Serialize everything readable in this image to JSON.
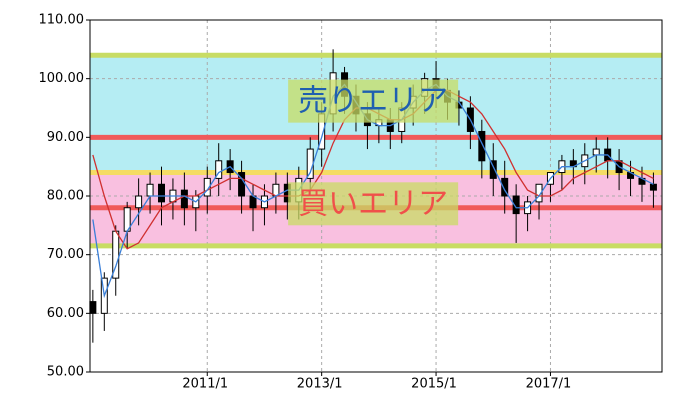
{
  "chart_data": {
    "type": "candlestick",
    "xlim": [
      2008.95,
      2018.95
    ],
    "xticks": [
      {
        "value": 2011,
        "label": "2011/1"
      },
      {
        "value": 2013,
        "label": "2013/1"
      },
      {
        "value": 2015,
        "label": "2015/1"
      },
      {
        "value": 2017,
        "label": "2017/1"
      }
    ],
    "ylim": [
      50,
      110
    ],
    "yticks": [
      {
        "value": 50,
        "label": "50.00"
      },
      {
        "value": 60,
        "label": "60.00"
      },
      {
        "value": 70,
        "label": "70.00"
      },
      {
        "value": 80,
        "label": "80.00"
      },
      {
        "value": 90,
        "label": "90.00"
      },
      {
        "value": 100,
        "label": "100.00"
      },
      {
        "value": 110,
        "label": "110.00"
      }
    ],
    "grid": true,
    "bands": [
      {
        "from": 84,
        "to": 104,
        "color": "#b5edf3"
      },
      {
        "from": 71.5,
        "to": 84,
        "color": "#f9c0e0"
      }
    ],
    "hlines": [
      {
        "value": 104,
        "color": "#c8dc64"
      },
      {
        "value": 90,
        "color": "#f05a5a"
      },
      {
        "value": 84,
        "color": "#f5dc64"
      },
      {
        "value": 78,
        "color": "#f05a5a"
      },
      {
        "value": 71.5,
        "color": "#c8dc64"
      }
    ],
    "annotations": [
      {
        "text": "売りエリア",
        "x": 2013.9,
        "y": 96,
        "color": "#1f5fb0"
      },
      {
        "text": "買いエリア",
        "x": 2013.9,
        "y": 78.5,
        "color": "#f0504a"
      }
    ],
    "x": [
      2009.0,
      2009.2,
      2009.4,
      2009.6,
      2009.8,
      2010.0,
      2010.2,
      2010.4,
      2010.6,
      2010.8,
      2011.0,
      2011.2,
      2011.4,
      2011.6,
      2011.8,
      2012.0,
      2012.2,
      2012.4,
      2012.6,
      2012.8,
      2013.0,
      2013.2,
      2013.4,
      2013.6,
      2013.8,
      2014.0,
      2014.2,
      2014.4,
      2014.6,
      2014.8,
      2015.0,
      2015.2,
      2015.4,
      2015.6,
      2015.8,
      2016.0,
      2016.2,
      2016.4,
      2016.6,
      2016.8,
      2017.0,
      2017.2,
      2017.4,
      2017.6,
      2017.8,
      2018.0,
      2018.2,
      2018.4,
      2018.6,
      2018.8
    ],
    "open": [
      62,
      60,
      66,
      74,
      78,
      80,
      82,
      79,
      81,
      78,
      80,
      83,
      86,
      84,
      80,
      78,
      80,
      82,
      79,
      83,
      88,
      94,
      101,
      97,
      94,
      92,
      93,
      91,
      95,
      97,
      100,
      98,
      96,
      95,
      91,
      86,
      83,
      80,
      77,
      79,
      82,
      84,
      86,
      85,
      87,
      88,
      86,
      84,
      83,
      82
    ],
    "high": [
      64,
      67,
      75,
      79,
      83,
      84,
      85,
      83,
      84,
      81,
      85,
      89,
      88,
      86,
      82,
      82,
      84,
      84,
      85,
      90,
      96,
      105,
      102,
      99,
      96,
      95,
      95,
      96,
      99,
      101,
      103,
      100,
      98,
      97,
      93,
      89,
      86,
      82,
      80,
      82,
      84,
      87,
      88,
      89,
      90,
      90,
      88,
      86,
      85,
      84
    ],
    "low": [
      55,
      57,
      63,
      71,
      75,
      77,
      75,
      76,
      75,
      74,
      77,
      80,
      81,
      77,
      74,
      75,
      77,
      76,
      76,
      80,
      85,
      91,
      94,
      91,
      88,
      89,
      88,
      89,
      92,
      94,
      95,
      93,
      92,
      88,
      83,
      80,
      77,
      72,
      74,
      76,
      79,
      81,
      82,
      82,
      84,
      83,
      81,
      80,
      79,
      78
    ],
    "close": [
      60,
      66,
      74,
      78,
      80,
      82,
      79,
      81,
      78,
      80,
      83,
      86,
      84,
      80,
      78,
      80,
      82,
      79,
      83,
      88,
      94,
      101,
      97,
      94,
      92,
      93,
      91,
      95,
      97,
      100,
      98,
      96,
      95,
      91,
      86,
      83,
      80,
      77,
      79,
      82,
      84,
      86,
      85,
      87,
      88,
      86,
      84,
      83,
      82,
      81
    ],
    "lines": [
      {
        "color": "#d03030",
        "values": [
          87,
          80,
          74,
          71,
          72,
          75,
          78,
          79,
          80,
          80,
          81,
          82,
          83,
          83,
          82,
          81,
          80,
          80,
          80,
          81,
          84,
          89,
          93,
          95,
          95,
          94,
          93,
          93,
          94,
          96,
          98,
          98,
          97,
          96,
          94,
          91,
          88,
          84,
          81,
          80,
          80,
          81,
          83,
          84,
          85,
          86,
          86,
          85,
          84,
          83
        ]
      },
      {
        "color": "#3a7fd8",
        "values": [
          76,
          63,
          68,
          74,
          77,
          80,
          80,
          80,
          80,
          79,
          81,
          84,
          85,
          83,
          80,
          79,
          80,
          81,
          81,
          84,
          90,
          97,
          99,
          96,
          93,
          92,
          92,
          93,
          96,
          98,
          99,
          97,
          96,
          93,
          89,
          85,
          81,
          78,
          78,
          80,
          83,
          85,
          85,
          86,
          87,
          87,
          85,
          84,
          83,
          82
        ]
      }
    ]
  }
}
